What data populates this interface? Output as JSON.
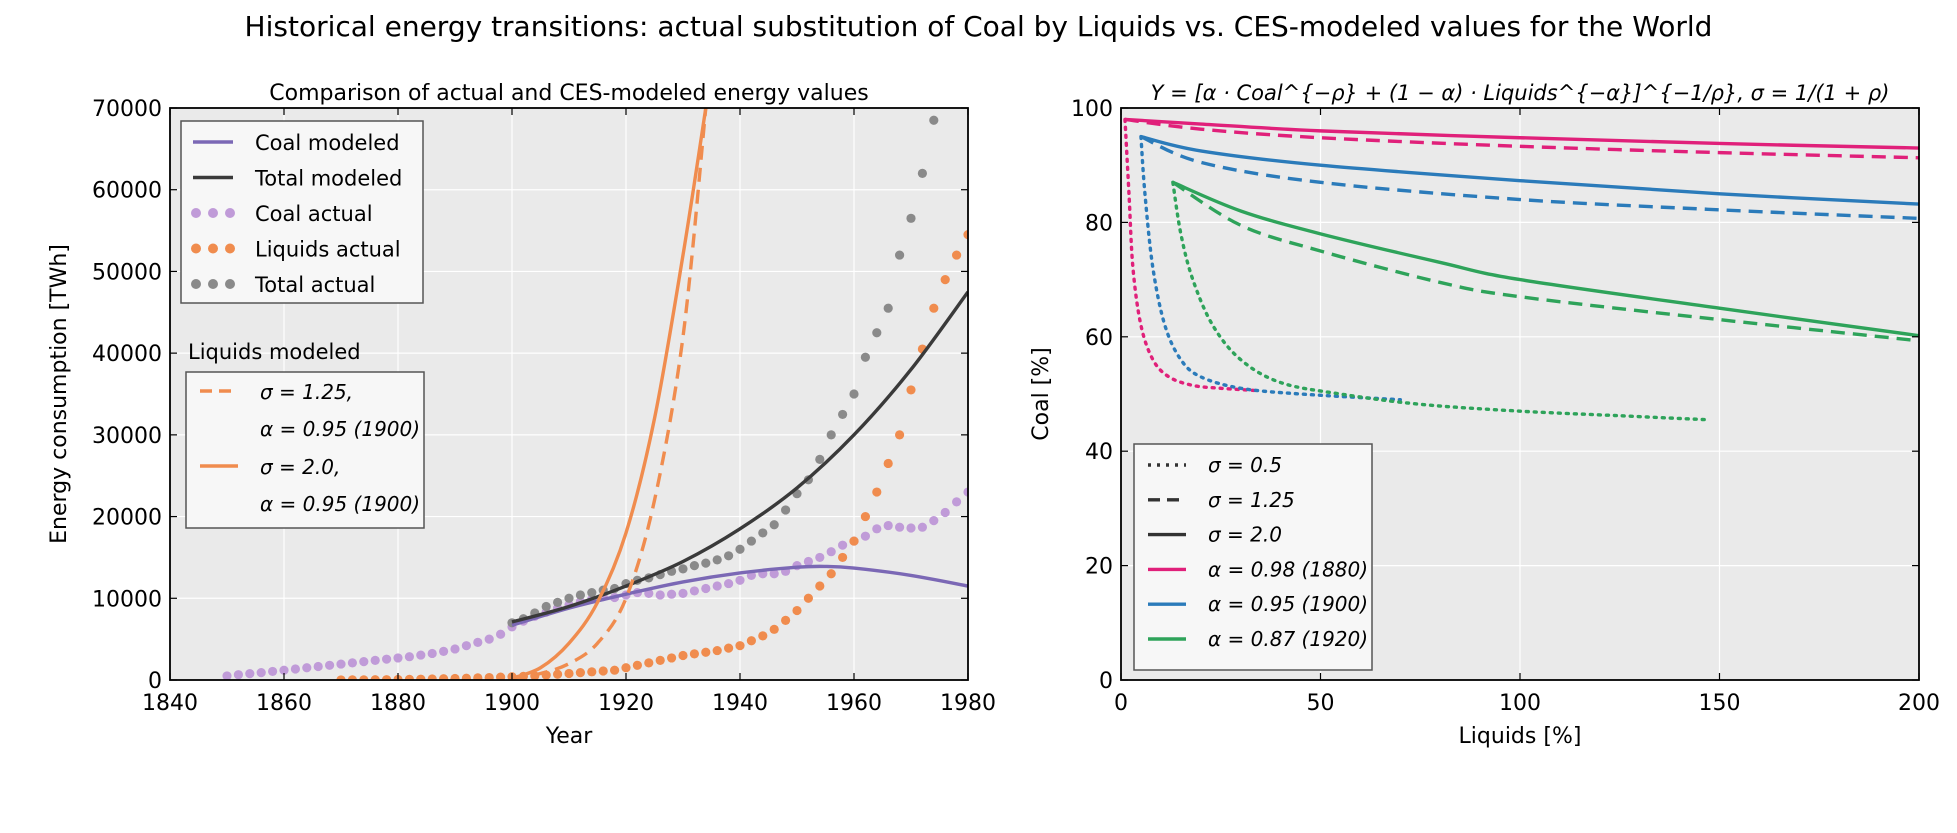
{
  "figure": {
    "title": "Historical energy transitions: actual substitution of Coal by Liquids vs. CES-modeled values for the World"
  },
  "chart_data": [
    {
      "type": "line",
      "title": "Comparison of actual and CES-modeled energy values",
      "xlabel": "Year",
      "ylabel": "Energy consumption [TWh]",
      "xlim": [
        1840,
        1980
      ],
      "ylim": [
        0,
        70000
      ],
      "xticks": [
        1840,
        1860,
        1880,
        1900,
        1920,
        1940,
        1960,
        1980
      ],
      "yticks": [
        0,
        10000,
        20000,
        30000,
        40000,
        50000,
        60000,
        70000
      ],
      "grid": true,
      "legend_placement": "top-left",
      "legend": [
        "Coal modeled",
        "Total modeled",
        "Coal actual",
        "Liquids actual",
        "Total actual"
      ],
      "legend2_title": "Liquids modeled",
      "legend2": [
        "σ = 1.25, α = 0.95 (1900)",
        "σ = 2.0, α = 0.95 (1900)"
      ],
      "colors": {
        "coal": "#7b68b5",
        "total": "#3a3a3a",
        "coal_actual": "#c09bd8",
        "liquids": "#f08c4e",
        "total_actual": "#8a8a8a"
      },
      "series": [
        {
          "name": "Coal actual",
          "style": "dots",
          "x": [
            1850,
            1852,
            1854,
            1856,
            1858,
            1860,
            1862,
            1864,
            1866,
            1868,
            1870,
            1872,
            1874,
            1876,
            1878,
            1880,
            1882,
            1884,
            1886,
            1888,
            1890,
            1892,
            1894,
            1896,
            1898,
            1900,
            1902,
            1904,
            1906,
            1908,
            1910,
            1912,
            1914,
            1916,
            1918,
            1920,
            1922,
            1924,
            1926,
            1928,
            1930,
            1932,
            1934,
            1936,
            1938,
            1940,
            1942,
            1944,
            1946,
            1948,
            1950,
            1952,
            1954,
            1956,
            1958,
            1960,
            1962,
            1964,
            1966,
            1968,
            1970,
            1972,
            1974,
            1976,
            1978,
            1980
          ],
          "y": [
            500,
            650,
            780,
            900,
            1050,
            1200,
            1350,
            1500,
            1650,
            1800,
            1950,
            2100,
            2250,
            2400,
            2550,
            2700,
            2850,
            3050,
            3250,
            3500,
            3800,
            4200,
            4600,
            5000,
            5600,
            6500,
            7200,
            7800,
            8300,
            8800,
            9200,
            9600,
            9900,
            10200,
            10100,
            10400,
            10700,
            10600,
            10400,
            10500,
            10600,
            10900,
            11200,
            11500,
            11800,
            12200,
            12800,
            13000,
            13000,
            13300,
            14000,
            14500,
            15000,
            15700,
            16500,
            17000,
            17600,
            18500,
            18900,
            18700,
            18600,
            18700,
            19500,
            20500,
            21800,
            23000
          ]
        },
        {
          "name": "Liquids actual",
          "style": "dots",
          "x": [
            1870,
            1872,
            1874,
            1876,
            1878,
            1880,
            1882,
            1884,
            1886,
            1888,
            1890,
            1892,
            1894,
            1896,
            1898,
            1900,
            1902,
            1904,
            1906,
            1908,
            1910,
            1912,
            1914,
            1916,
            1918,
            1920,
            1922,
            1924,
            1926,
            1928,
            1930,
            1932,
            1934,
            1936,
            1938,
            1940,
            1942,
            1944,
            1946,
            1948,
            1950,
            1952,
            1954,
            1956,
            1958,
            1960,
            1962,
            1964,
            1966,
            1968,
            1970,
            1972,
            1974,
            1976,
            1978,
            1980
          ],
          "y": [
            10,
            15,
            20,
            30,
            40,
            60,
            80,
            100,
            120,
            150,
            180,
            220,
            260,
            300,
            350,
            400,
            450,
            500,
            600,
            700,
            800,
            900,
            1000,
            1100,
            1200,
            1500,
            1800,
            2100,
            2400,
            2700,
            3000,
            3200,
            3400,
            3600,
            3900,
            4200,
            4800,
            5400,
            6200,
            7300,
            8500,
            10000,
            11500,
            13000,
            15000,
            17000,
            20000,
            23000,
            26500,
            30000,
            35500,
            40500,
            45500,
            49000,
            52000,
            54500
          ]
        },
        {
          "name": "Total actual",
          "style": "dots",
          "x": [
            1900,
            1902,
            1904,
            1906,
            1908,
            1910,
            1912,
            1914,
            1916,
            1918,
            1920,
            1922,
            1924,
            1926,
            1928,
            1930,
            1932,
            1934,
            1936,
            1938,
            1940,
            1942,
            1944,
            1946,
            1948,
            1950,
            1952,
            1954,
            1956,
            1958,
            1960,
            1962,
            1964,
            1966,
            1968,
            1970,
            1972,
            1974
          ],
          "y": [
            7000,
            7500,
            8200,
            9000,
            9500,
            10000,
            10400,
            10700,
            11000,
            11200,
            11800,
            12200,
            12500,
            12900,
            13300,
            13600,
            14000,
            14300,
            14700,
            15200,
            16000,
            17000,
            18000,
            19000,
            20800,
            22800,
            24500,
            27000,
            30000,
            32500,
            35000,
            39500,
            42500,
            45500,
            52000,
            56500,
            62000,
            68500
          ]
        },
        {
          "name": "Coal modeled",
          "style": "solid",
          "x": [
            1900,
            1910,
            1920,
            1930,
            1940,
            1950,
            1955,
            1960,
            1970,
            1980
          ],
          "y": [
            6700,
            8800,
            10500,
            12000,
            13100,
            13800,
            13900,
            13700,
            12800,
            11500
          ]
        },
        {
          "name": "Total modeled",
          "style": "solid",
          "x": [
            1900,
            1910,
            1920,
            1930,
            1940,
            1950,
            1960,
            1970,
            1980
          ],
          "y": [
            7100,
            9000,
            11500,
            14500,
            18500,
            23500,
            30000,
            38000,
            47500
          ]
        },
        {
          "name": "σ = 1.25, α = 0.95 (1900)",
          "style": "dashed",
          "x": [
            1900,
            1905,
            1910,
            1915,
            1920,
            1925,
            1930,
            1934
          ],
          "y": [
            200,
            800,
            2000,
            4500,
            10000,
            22000,
            42000,
            70000
          ]
        },
        {
          "name": "σ = 2.0, α = 0.95 (1900)",
          "style": "solid",
          "x": [
            1900,
            1905,
            1910,
            1915,
            1920,
            1925,
            1930,
            1934
          ],
          "y": [
            200,
            1500,
            4500,
            9500,
            18000,
            32000,
            52000,
            70000
          ]
        }
      ]
    },
    {
      "type": "line",
      "title": "Y = [α · Coal^{−ρ} + (1 − α) · Liquids^{−α}]^{−1/ρ}, σ = 1/(1 + ρ)",
      "xlabel": "Liquids [%]",
      "ylabel": "Coal [%]",
      "xlim": [
        0,
        200
      ],
      "ylim": [
        0,
        100
      ],
      "xticks": [
        0,
        50,
        100,
        150,
        200
      ],
      "yticks": [
        0,
        20,
        40,
        60,
        80,
        100
      ],
      "grid": true,
      "legend_placement": "lower-left",
      "legend": [
        "σ = 0.5",
        "σ = 1.25",
        "σ = 2.0",
        "α = 0.98 (1880)",
        "α = 0.95 (1900)",
        "α = 0.87 (1920)"
      ],
      "colors": {
        "a098": "#e0207a",
        "a095": "#2b7bba",
        "a087": "#2ea35a"
      },
      "series": [
        {
          "name": "α = 0.98 (1880), σ = 2.0",
          "color": "#e0207a",
          "style": "solid",
          "x": [
            1,
            20,
            50,
            100,
            150,
            200
          ],
          "y": [
            98,
            97.2,
            96,
            94.8,
            93.8,
            93
          ]
        },
        {
          "name": "α = 0.98 (1880), σ = 1.25",
          "color": "#e0207a",
          "style": "dashed",
          "x": [
            1,
            20,
            50,
            100,
            150,
            200
          ],
          "y": [
            98,
            96.3,
            94.8,
            93.3,
            92.2,
            91.3
          ]
        },
        {
          "name": "α = 0.98 (1880), σ = 0.5",
          "color": "#e0207a",
          "style": "dotted",
          "x": [
            1,
            2,
            3,
            5,
            8,
            12,
            18,
            25,
            34
          ],
          "y": [
            98,
            85,
            72,
            62,
            56,
            53,
            51.5,
            51,
            50.6
          ]
        },
        {
          "name": "α = 0.95 (1900), σ = 2.0",
          "color": "#2b7bba",
          "style": "solid",
          "x": [
            5,
            20,
            50,
            100,
            150,
            200
          ],
          "y": [
            95,
            92.5,
            90,
            87.3,
            85,
            83.2
          ]
        },
        {
          "name": "α = 0.95 (1900), σ = 1.25",
          "color": "#2b7bba",
          "style": "dashed",
          "x": [
            5,
            20,
            50,
            100,
            150,
            200
          ],
          "y": [
            95,
            90.5,
            87,
            84,
            82.2,
            80.7
          ]
        },
        {
          "name": "α = 0.95 (1900), σ = 0.5",
          "color": "#2b7bba",
          "style": "dotted",
          "x": [
            5,
            6,
            8,
            11,
            15,
            20,
            30,
            45,
            70
          ],
          "y": [
            95,
            85,
            72,
            62,
            56,
            53,
            51,
            50,
            49
          ]
        },
        {
          "name": "α = 0.87 (1920), σ = 2.0",
          "color": "#2ea35a",
          "style": "solid",
          "x": [
            13,
            30,
            50,
            80,
            100,
            150,
            200
          ],
          "y": [
            87,
            82,
            78,
            73,
            70,
            65,
            60.2
          ]
        },
        {
          "name": "α = 0.87 (1920), σ = 1.25",
          "color": "#2ea35a",
          "style": "dashed",
          "x": [
            13,
            30,
            50,
            80,
            100,
            150,
            200
          ],
          "y": [
            87,
            79.5,
            75,
            69.5,
            67,
            63,
            59.3
          ]
        },
        {
          "name": "α = 0.87 (1920), σ = 0.5",
          "color": "#2ea35a",
          "style": "dotted",
          "x": [
            13,
            15,
            18,
            23,
            30,
            40,
            55,
            75,
            100,
            125,
            147
          ],
          "y": [
            87,
            78,
            70,
            62,
            56,
            52,
            50,
            48.2,
            47,
            46.2,
            45.5
          ]
        }
      ]
    }
  ]
}
